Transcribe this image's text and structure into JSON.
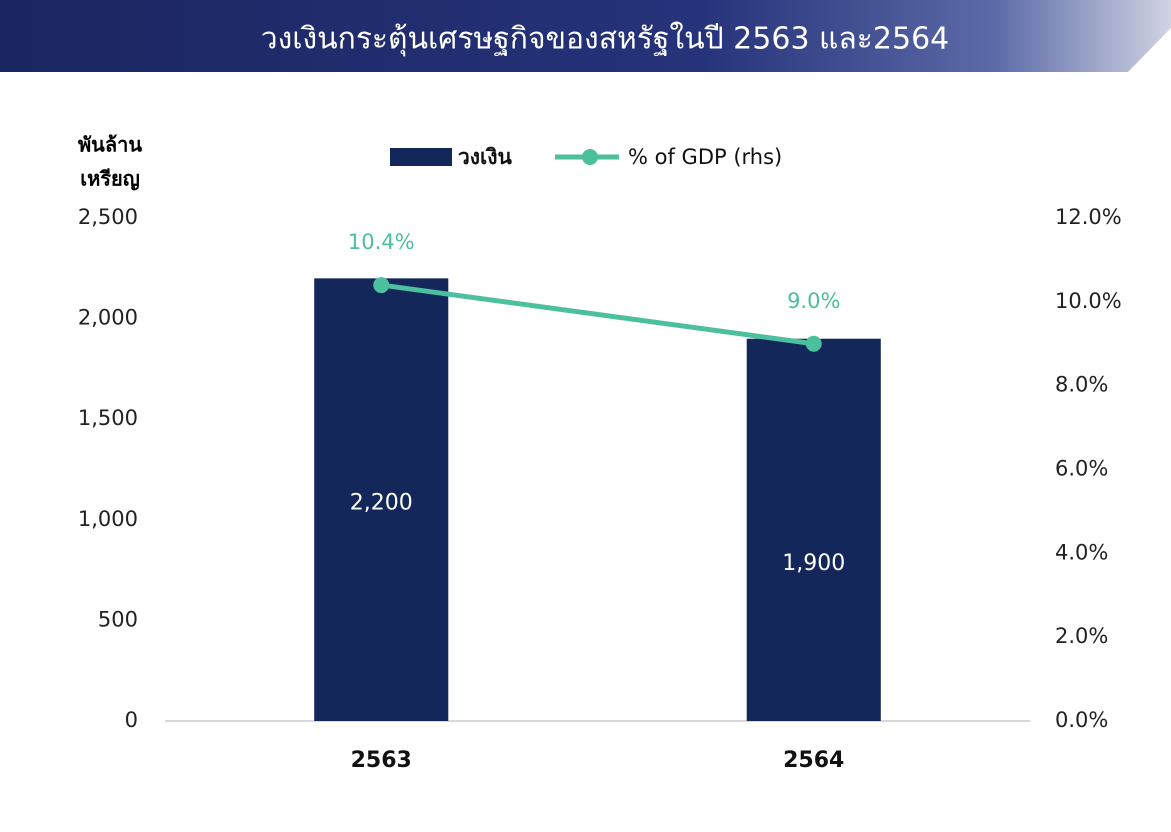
{
  "chart_data": {
    "type": "bar-line",
    "title": "วงเงินกระตุ้นเศรษฐกิจของสหรัฐในปี 2563 และ2564",
    "y_label": [
      "พันล้าน",
      "เหรียญ"
    ],
    "categories": [
      "2563",
      "2564"
    ],
    "series": [
      {
        "name": "วงเงิน",
        "type": "bar",
        "color": "#13275a",
        "values": [
          2200,
          1900
        ],
        "value_labels": [
          "2,200",
          "1,900"
        ]
      },
      {
        "name": "% of GDP (rhs)",
        "type": "line",
        "axis": "y2",
        "color": "#4cbf9f",
        "values": [
          10.4,
          9.0
        ],
        "value_labels": [
          "10.4%",
          "9.0%"
        ]
      }
    ],
    "ylim": [
      0,
      2500
    ],
    "yticks": [
      0,
      500,
      {
        "value": 1000,
        "label": "1,000"
      },
      {
        "value": 1500,
        "label": "1,500"
      },
      {
        "value": 2000,
        "label": "2,000"
      },
      {
        "value": 2500,
        "label": "2,500"
      }
    ],
    "y2lim": [
      0,
      12
    ],
    "y2ticks": [
      {
        "value": 0,
        "label": "0.0%"
      },
      {
        "value": 2,
        "label": "2.0%"
      },
      {
        "value": 4,
        "label": "4.0%"
      },
      {
        "value": 6,
        "label": "6.0%"
      },
      {
        "value": 8,
        "label": "8.0%"
      },
      {
        "value": 10,
        "label": "10.0%"
      },
      {
        "value": 12,
        "label": "12.0%"
      }
    ],
    "grid": false,
    "legend": "top"
  }
}
